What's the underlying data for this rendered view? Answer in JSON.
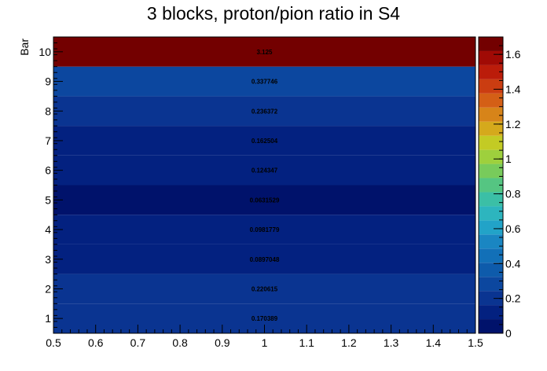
{
  "chart_data": {
    "type": "heatmap",
    "title": "3 blocks, proton/pion ratio in S4",
    "xlabel": "",
    "ylabel": "Bar",
    "xlim": [
      0.5,
      1.5
    ],
    "ylim": [
      0.5,
      10.5
    ],
    "x_ticks": [
      "0.5",
      "0.6",
      "0.7",
      "0.8",
      "0.9",
      "1",
      "1.1",
      "1.2",
      "1.3",
      "1.4",
      "1.5"
    ],
    "y_ticks": [
      "1",
      "2",
      "3",
      "4",
      "5",
      "6",
      "7",
      "8",
      "9",
      "10"
    ],
    "z_range": [
      0,
      1.7
    ],
    "colorbar_ticks": [
      "0",
      "0.2",
      "0.4",
      "0.6",
      "0.8",
      "1",
      "1.2",
      "1.4",
      "1.6"
    ],
    "bins": [
      {
        "bar": 1,
        "value": 0.170389,
        "label": "0.170389"
      },
      {
        "bar": 2,
        "value": 0.220615,
        "label": "0.220615"
      },
      {
        "bar": 3,
        "value": 0.0897048,
        "label": "0.0897048"
      },
      {
        "bar": 4,
        "value": 0.0981779,
        "label": "0.0981779"
      },
      {
        "bar": 5,
        "value": 0.0631529,
        "label": "0.0631529"
      },
      {
        "bar": 6,
        "value": 0.124347,
        "label": "0.124347"
      },
      {
        "bar": 7,
        "value": 0.162504,
        "label": "0.162504"
      },
      {
        "bar": 8,
        "value": 0.236372,
        "label": "0.236372"
      },
      {
        "bar": 9,
        "value": 0.337746,
        "label": "0.337746"
      },
      {
        "bar": 10,
        "value": 3.125,
        "label": "3.125"
      }
    ],
    "palette": [
      "#00126b",
      "#032180",
      "#0a3491",
      "#0c479f",
      "#0e5bab",
      "#1270b8",
      "#1a86c2",
      "#22a3c8",
      "#2db5be",
      "#3bbfa6",
      "#55c582",
      "#78cb5b",
      "#9ed03d",
      "#c3cb24",
      "#d5a91c",
      "#d78419",
      "#d45f16",
      "#cb3d11",
      "#bb1c0a",
      "#a00a05",
      "#730000"
    ]
  }
}
